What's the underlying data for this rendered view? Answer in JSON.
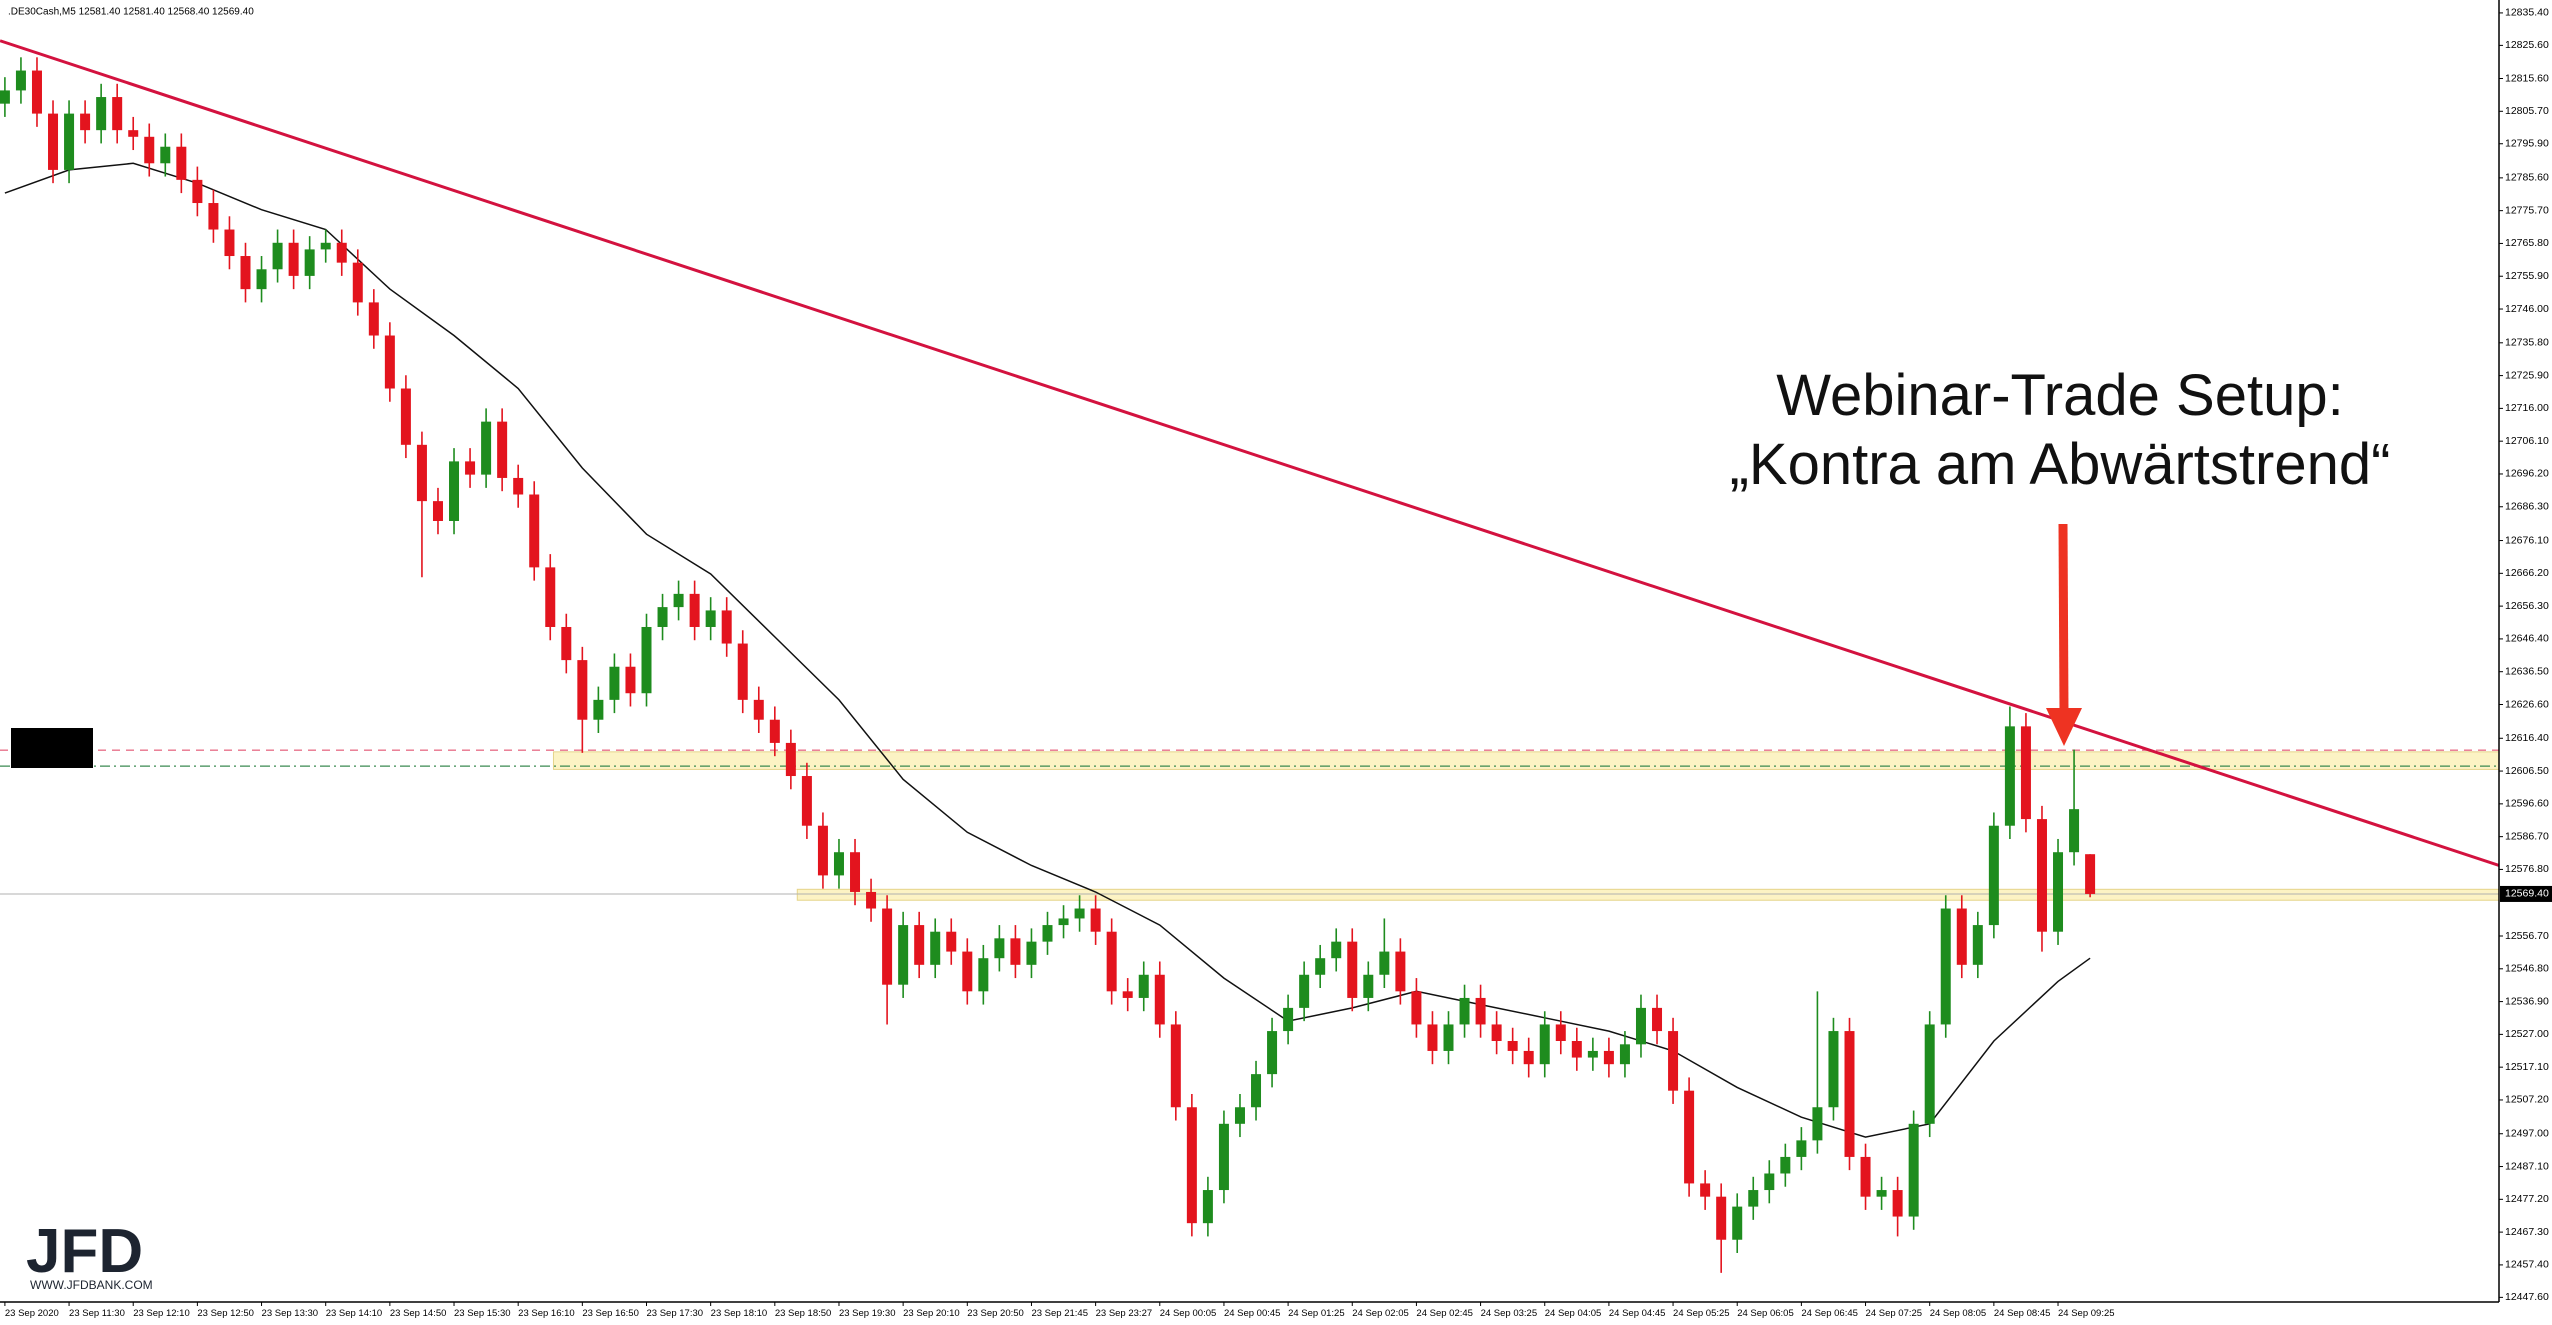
{
  "chart_data": {
    "type": "candlestick",
    "header": ".DE30Cash,M5  12581.40 12581.40 12568.40 12569.40",
    "annotation": [
      "Webinar-Trade Setup:",
      "„Kontra am Abwärtstrend“"
    ],
    "logo": {
      "mark": "JFD",
      "url": "WWW.JFDBANK.COM"
    },
    "ylim": [
      12446.2,
      12839.3
    ],
    "yticks": [
      {
        "value": 12835.4,
        "label": "12835.40"
      },
      {
        "value": 12825.6,
        "label": "12825.60"
      },
      {
        "value": 12815.6,
        "label": "12815.60"
      },
      {
        "value": 12805.7,
        "label": "12805.70"
      },
      {
        "value": 12795.9,
        "label": "12795.90"
      },
      {
        "value": 12785.6,
        "label": "12785.60"
      },
      {
        "value": 12775.7,
        "label": "12775.70"
      },
      {
        "value": 12765.8,
        "label": "12765.80"
      },
      {
        "value": 12755.9,
        "label": "12755.90"
      },
      {
        "value": 12746,
        "label": "12746.00"
      },
      {
        "value": 12735.8,
        "label": "12735.80"
      },
      {
        "value": 12725.9,
        "label": "12725.90"
      },
      {
        "value": 12716,
        "label": "12716.00"
      },
      {
        "value": 12706.1,
        "label": "12706.10"
      },
      {
        "value": 12696.2,
        "label": "12696.20"
      },
      {
        "value": 12686.3,
        "label": "12686.30"
      },
      {
        "value": 12676.1,
        "label": "12676.10"
      },
      {
        "value": 12666.2,
        "label": "12666.20"
      },
      {
        "value": 12656.3,
        "label": "12656.30"
      },
      {
        "value": 12646.4,
        "label": "12646.40"
      },
      {
        "value": 12636.5,
        "label": "12636.50"
      },
      {
        "value": 12626.6,
        "label": "12626.60"
      },
      {
        "value": 12616.4,
        "label": "12616.40"
      },
      {
        "value": 12606.5,
        "label": "12606.50"
      },
      {
        "value": 12596.6,
        "label": "12596.60"
      },
      {
        "value": 12586.7,
        "label": "12586.70"
      },
      {
        "value": 12576.8,
        "label": "12576.80"
      },
      {
        "value": 12556.7,
        "label": "12556.70"
      },
      {
        "value": 12546.8,
        "label": "12546.80"
      },
      {
        "value": 12536.9,
        "label": "12536.90"
      },
      {
        "value": 12527,
        "label": "12527.00"
      },
      {
        "value": 12517.1,
        "label": "12517.10"
      },
      {
        "value": 12507.2,
        "label": "12507.20"
      },
      {
        "value": 12497,
        "label": "12497.00"
      },
      {
        "value": 12487.1,
        "label": "12487.10"
      },
      {
        "value": 12477.2,
        "label": "12477.20"
      },
      {
        "value": 12467.3,
        "label": "12467.30"
      },
      {
        "value": 12457.4,
        "label": "12457.40"
      },
      {
        "value": 12447.6,
        "label": "12447.60"
      }
    ],
    "x_labels": [
      "23 Sep 2020",
      "23 Sep 11:30",
      "23 Sep 12:10",
      "23 Sep 12:50",
      "23 Sep 13:30",
      "23 Sep 14:10",
      "23 Sep 14:50",
      "23 Sep 15:30",
      "23 Sep 16:10",
      "23 Sep 16:50",
      "23 Sep 17:30",
      "23 Sep 18:10",
      "23 Sep 18:50",
      "23 Sep 19:30",
      "23 Sep 20:10",
      "23 Sep 20:50",
      "23 Sep 21:45",
      "23 Sep 23:27",
      "24 Sep 00:05",
      "24 Sep 00:45",
      "24 Sep 01:25",
      "24 Sep 02:05",
      "24 Sep 02:45",
      "24 Sep 03:25",
      "24 Sep 04:05",
      "24 Sep 04:45",
      "24 Sep 05:25",
      "24 Sep 06:05",
      "24 Sep 06:45",
      "24 Sep 07:25",
      "24 Sep 08:05",
      "24 Sep 08:45",
      "24 Sep 09:25"
    ],
    "up_color": "#1e8c1e",
    "down_color": "#e3141e",
    "open": [
      12808,
      12812,
      12818,
      12805,
      12788,
      12805,
      12800,
      12810,
      12800,
      12798,
      12790,
      12795,
      12785,
      12778,
      12770,
      12762,
      12752,
      12758,
      12766,
      12756,
      12764,
      12766,
      12760,
      12748,
      12738,
      12722,
      12705,
      12688,
      12682,
      12700,
      12696,
      12712,
      12695,
      12690,
      12668,
      12650,
      12640,
      12622,
      12628,
      12638,
      12630,
      12650,
      12656,
      12660,
      12650,
      12655,
      12645,
      12628,
      12622,
      12615,
      12605,
      12590,
      12575,
      12582,
      12570,
      12565,
      12542,
      12560,
      12548,
      12558,
      12552,
      12540,
      12550,
      12556,
      12548,
      12555,
      12560,
      12562,
      12565,
      12558,
      12540,
      12538,
      12545,
      12530,
      12505,
      12470,
      12480,
      12500,
      12505,
      12515,
      12528,
      12535,
      12545,
      12550,
      12555,
      12538,
      12545,
      12552,
      12540,
      12530,
      12522,
      12530,
      12538,
      12530,
      12525,
      12522,
      12518,
      12530,
      12525,
      12520,
      12522,
      12518,
      12524,
      12535,
      12528,
      12510,
      12482,
      12478,
      12465,
      12475,
      12480,
      12485,
      12490,
      12495,
      12505,
      12528,
      12490,
      12478,
      12480,
      12472,
      12500,
      12530,
      12565,
      12548,
      12560,
      12590,
      12620,
      12592,
      12558,
      12582,
      12581.4
    ],
    "high": [
      12816,
      12822,
      12822,
      12809,
      12809,
      12809,
      12814,
      12814,
      12804,
      12802,
      12799,
      12799,
      12789,
      12782,
      12774,
      12766,
      12762,
      12770,
      12770,
      12768,
      12770,
      12770,
      12764,
      12752,
      12742,
      12726,
      12709,
      12692,
      12704,
      12704,
      12716,
      12716,
      12699,
      12694,
      12672,
      12654,
      12644,
      12632,
      12642,
      12642,
      12654,
      12660,
      12664,
      12664,
      12659,
      12659,
      12649,
      12632,
      12626,
      12619,
      12609,
      12594,
      12586,
      12586,
      12574,
      12569,
      12564,
      12564,
      12562,
      12562,
      12556,
      12554,
      12560,
      12560,
      12559,
      12564,
      12566,
      12569,
      12569,
      12562,
      12544,
      12549,
      12549,
      12534,
      12509,
      12484,
      12504,
      12509,
      12519,
      12532,
      12539,
      12549,
      12554,
      12559,
      12559,
      12549,
      12562,
      12556,
      12544,
      12534,
      12534,
      12542,
      12542,
      12534,
      12529,
      12526,
      12534,
      12534,
      12529,
      12526,
      12526,
      12528,
      12539,
      12539,
      12532,
      12514,
      12486,
      12482,
      12479,
      12484,
      12489,
      12494,
      12499,
      12540,
      12532,
      12532,
      12494,
      12484,
      12484,
      12504,
      12534,
      12569,
      12569,
      12564,
      12594,
      12626,
      12624,
      12596,
      12586,
      12613,
      12581.4
    ],
    "low": [
      12804,
      12808,
      12801,
      12784,
      12784,
      12796,
      12796,
      12796,
      12794,
      12786,
      12786,
      12781,
      12774,
      12766,
      12758,
      12748,
      12748,
      12754,
      12752,
      12752,
      12760,
      12756,
      12744,
      12734,
      12718,
      12701,
      12665,
      12678,
      12678,
      12692,
      12692,
      12691,
      12686,
      12664,
      12646,
      12636,
      12612,
      12618,
      12624,
      12626,
      12626,
      12646,
      12652,
      12646,
      12646,
      12641,
      12624,
      12618,
      12611,
      12601,
      12586,
      12571,
      12571,
      12566,
      12561,
      12530,
      12538,
      12544,
      12544,
      12548,
      12536,
      12536,
      12546,
      12544,
      12544,
      12551,
      12556,
      12558,
      12554,
      12536,
      12534,
      12534,
      12526,
      12501,
      12466,
      12466,
      12476,
      12496,
      12501,
      12511,
      12524,
      12531,
      12541,
      12546,
      12534,
      12534,
      12541,
      12536,
      12526,
      12518,
      12518,
      12526,
      12526,
      12521,
      12518,
      12514,
      12514,
      12521,
      12516,
      12516,
      12514,
      12514,
      12520,
      12524,
      12506,
      12478,
      12474,
      12455,
      12461,
      12471,
      12476,
      12481,
      12486,
      12491,
      12501,
      12486,
      12474,
      12474,
      12466,
      12468,
      12496,
      12526,
      12544,
      12544,
      12556,
      12586,
      12588,
      12552,
      12554,
      12578,
      12568.4
    ],
    "close": [
      12812,
      12818,
      12805,
      12788,
      12805,
      12800,
      12810,
      12800,
      12798,
      12790,
      12795,
      12785,
      12778,
      12770,
      12762,
      12752,
      12758,
      12766,
      12756,
      12764,
      12766,
      12760,
      12748,
      12738,
      12722,
      12705,
      12688,
      12682,
      12700,
      12696,
      12712,
      12695,
      12690,
      12668,
      12650,
      12640,
      12622,
      12628,
      12638,
      12630,
      12650,
      12656,
      12660,
      12650,
      12655,
      12645,
      12628,
      12622,
      12615,
      12605,
      12590,
      12575,
      12582,
      12570,
      12565,
      12542,
      12560,
      12548,
      12558,
      12552,
      12540,
      12550,
      12556,
      12548,
      12555,
      12560,
      12562,
      12565,
      12558,
      12540,
      12538,
      12545,
      12530,
      12505,
      12470,
      12480,
      12500,
      12505,
      12515,
      12528,
      12535,
      12545,
      12550,
      12555,
      12538,
      12545,
      12552,
      12540,
      12530,
      12522,
      12530,
      12538,
      12530,
      12525,
      12522,
      12518,
      12530,
      12525,
      12520,
      12522,
      12518,
      12524,
      12535,
      12528,
      12510,
      12482,
      12478,
      12465,
      12475,
      12480,
      12485,
      12490,
      12495,
      12505,
      12528,
      12490,
      12478,
      12480,
      12472,
      12500,
      12530,
      12565,
      12548,
      12560,
      12590,
      12620,
      12592,
      12558,
      12582,
      12595,
      12569.4
    ],
    "moving_average": {
      "color": "#111111",
      "x": [
        0,
        4,
        8,
        12,
        16,
        20,
        24,
        28,
        32,
        36,
        40,
        44,
        48,
        52,
        56,
        60,
        64,
        68,
        72,
        76,
        80,
        84,
        88,
        92,
        96,
        100,
        104,
        108,
        112,
        116,
        120,
        124,
        128,
        130
      ],
      "values": [
        12781,
        12788,
        12790,
        12784,
        12776,
        12770,
        12752,
        12738,
        12722,
        12698,
        12678,
        12666,
        12647,
        12628,
        12604,
        12588,
        12578,
        12570,
        12560,
        12544,
        12531,
        12535,
        12540,
        12536,
        12532,
        12528,
        12522,
        12511,
        12502,
        12496,
        12500,
        12525,
        12543,
        12550
      ]
    },
    "trendline": {
      "color": "#d3123f",
      "x": [
        -0.3,
        155.5
      ],
      "values": [
        12827,
        12578
      ]
    },
    "levels": [
      {
        "value": 12612.8,
        "color": "#e8708a",
        "style": "dash"
      },
      {
        "value": 12608,
        "color": "#3a8a50",
        "style": "dashdot"
      }
    ],
    "zones": [
      {
        "from": 12607,
        "to": 12612.3,
        "start": 34.2
      },
      {
        "from": 12567.5,
        "to": 12570.8,
        "start": 49.4
      }
    ],
    "last_price": {
      "value": 12569.4,
      "label": "12569.40"
    }
  }
}
